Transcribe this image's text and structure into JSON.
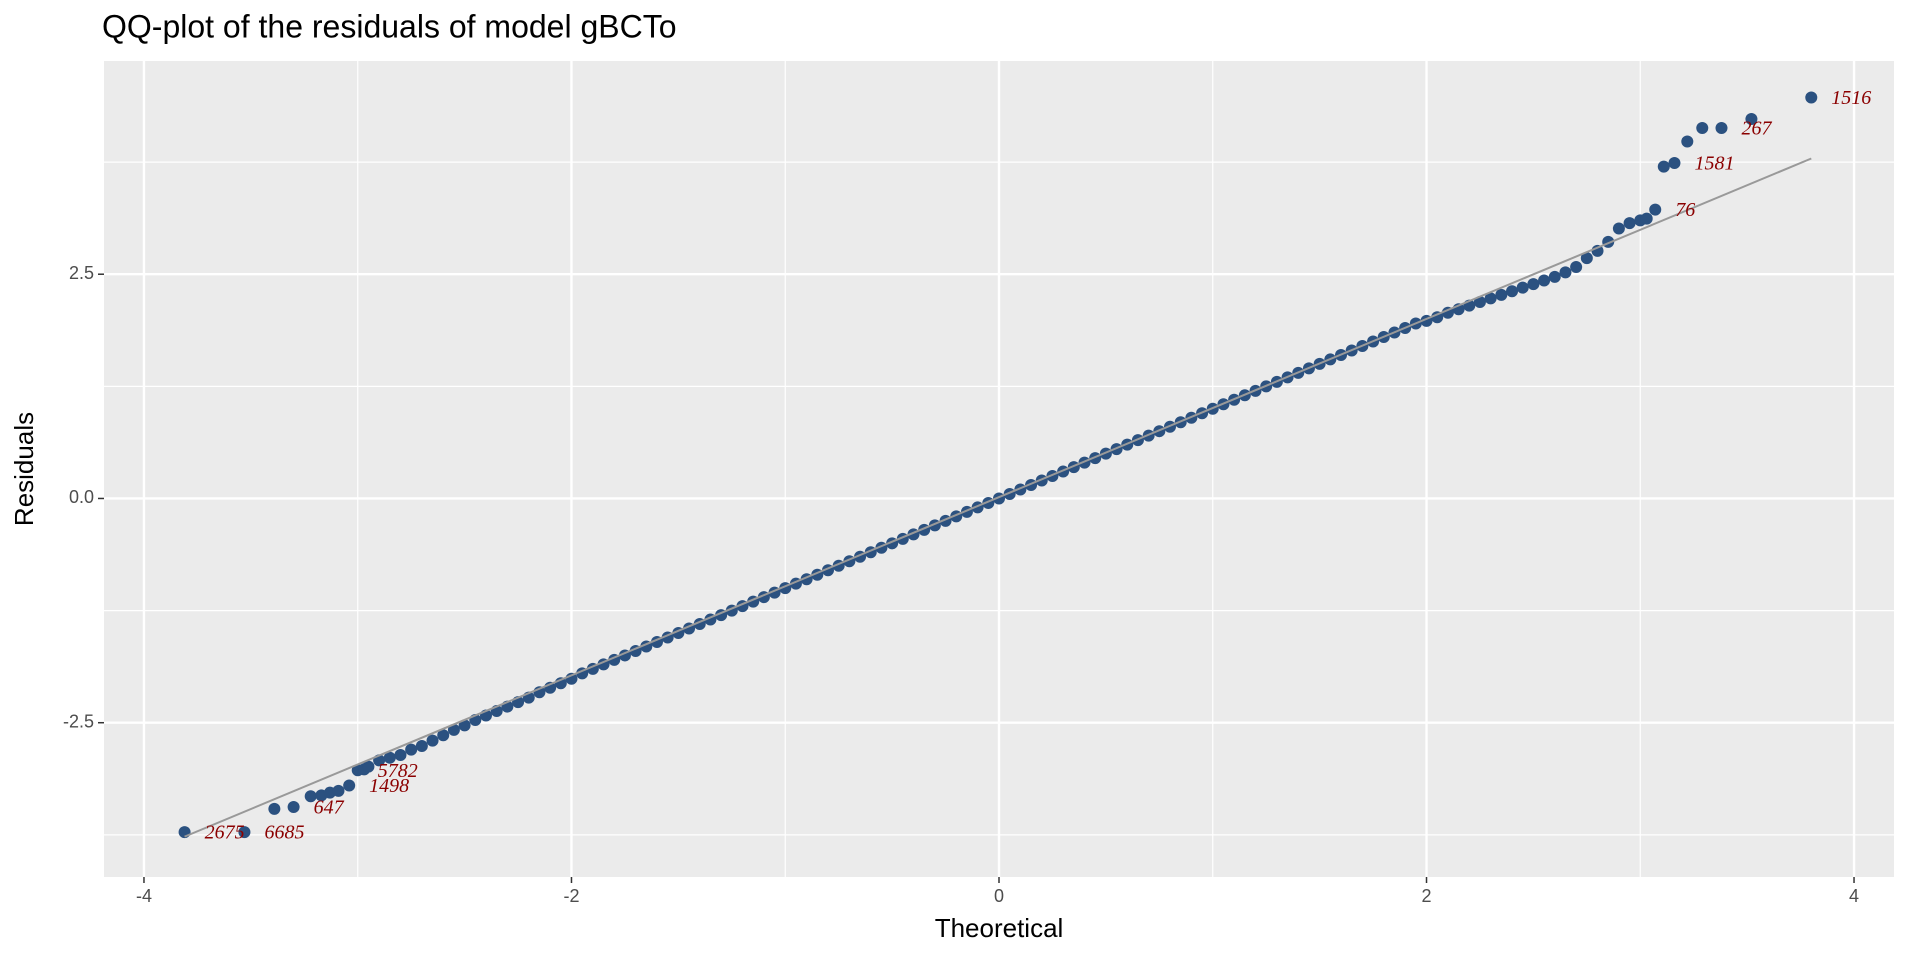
{
  "chart_data": {
    "type": "scatter",
    "title": "QQ-plot of the residuals of model gBCTo",
    "xlabel": "Theoretical",
    "ylabel": "Residuals",
    "color": "#2b5180",
    "x": [
      -3.81,
      -3.53,
      -3.39,
      -3.3,
      -3.22,
      -3.17,
      -3.13,
      -3.09,
      -3.04,
      -3.0,
      -2.97,
      -2.95,
      -2.9,
      -2.85,
      -2.8,
      -2.75,
      -2.7,
      -2.65,
      -2.6,
      -2.55,
      -2.5,
      -2.45,
      -2.4,
      -2.35,
      -2.3,
      -2.25,
      -2.2,
      -2.15,
      -2.1,
      -2.05,
      -2.0,
      -1.95,
      -1.9,
      -1.85,
      -1.8,
      -1.75,
      -1.7,
      -1.65,
      -1.6,
      -1.55,
      -1.5,
      -1.45,
      -1.4,
      -1.35,
      -1.3,
      -1.25,
      -1.2,
      -1.15,
      -1.1,
      -1.05,
      -1.0,
      -0.95,
      -0.9,
      -0.85,
      -0.8,
      -0.75,
      -0.7,
      -0.65,
      -0.6,
      -0.55,
      -0.5,
      -0.45,
      -0.4,
      -0.35,
      -0.3,
      -0.25,
      -0.2,
      -0.15,
      -0.1,
      -0.05,
      0,
      0.05,
      0.1,
      0.15,
      0.2,
      0.25,
      0.3,
      0.35,
      0.4,
      0.45,
      0.5,
      0.55,
      0.6,
      0.65,
      0.7,
      0.75,
      0.8,
      0.85,
      0.9,
      0.95,
      1.0,
      1.05,
      1.1,
      1.15,
      1.2,
      1.25,
      1.3,
      1.35,
      1.4,
      1.45,
      1.5,
      1.55,
      1.6,
      1.65,
      1.7,
      1.75,
      1.8,
      1.85,
      1.9,
      1.95,
      2.0,
      2.05,
      2.1,
      2.15,
      2.2,
      2.25,
      2.3,
      2.35,
      2.4,
      2.45,
      2.5,
      2.55,
      2.6,
      2.65,
      2.7,
      2.75,
      2.8,
      2.85,
      2.9,
      2.95,
      3.0,
      3.03,
      3.07,
      3.11,
      3.16,
      3.22,
      3.29,
      3.38,
      3.52,
      3.8
    ],
    "values": [
      -3.72,
      -3.72,
      -3.46,
      -3.44,
      -3.32,
      -3.31,
      -3.28,
      -3.26,
      -3.2,
      -3.03,
      -3.02,
      -2.99,
      -2.92,
      -2.89,
      -2.86,
      -2.8,
      -2.76,
      -2.7,
      -2.64,
      -2.58,
      -2.53,
      -2.47,
      -2.42,
      -2.37,
      -2.32,
      -2.27,
      -2.22,
      -2.16,
      -2.11,
      -2.06,
      -2.01,
      -1.95,
      -1.9,
      -1.85,
      -1.8,
      -1.75,
      -1.7,
      -1.65,
      -1.6,
      -1.55,
      -1.5,
      -1.45,
      -1.4,
      -1.35,
      -1.3,
      -1.25,
      -1.2,
      -1.15,
      -1.1,
      -1.05,
      -1.0,
      -0.95,
      -0.9,
      -0.85,
      -0.8,
      -0.75,
      -0.7,
      -0.65,
      -0.6,
      -0.55,
      -0.5,
      -0.45,
      -0.4,
      -0.35,
      -0.3,
      -0.25,
      -0.2,
      -0.15,
      -0.1,
      -0.05,
      0,
      0.05,
      0.1,
      0.15,
      0.2,
      0.25,
      0.3,
      0.35,
      0.4,
      0.45,
      0.5,
      0.55,
      0.6,
      0.65,
      0.7,
      0.75,
      0.8,
      0.85,
      0.9,
      0.95,
      1.0,
      1.05,
      1.1,
      1.15,
      1.2,
      1.25,
      1.3,
      1.35,
      1.4,
      1.45,
      1.5,
      1.55,
      1.6,
      1.65,
      1.7,
      1.75,
      1.8,
      1.85,
      1.9,
      1.95,
      1.98,
      2.02,
      2.07,
      2.11,
      2.15,
      2.19,
      2.23,
      2.27,
      2.31,
      2.35,
      2.39,
      2.43,
      2.47,
      2.52,
      2.58,
      2.68,
      2.76,
      2.86,
      3.01,
      3.07,
      3.1,
      3.12,
      3.22,
      3.7,
      3.74,
      3.98,
      4.13,
      4.13,
      4.23,
      4.47
    ],
    "reference_line": {
      "x": [
        -3.81,
        3.8
      ],
      "y": [
        -3.77,
        3.79
      ],
      "color": "#999999"
    },
    "annotations": [
      {
        "text": "2675",
        "x": -3.81,
        "y": -3.72
      },
      {
        "text": "6685",
        "x": -3.53,
        "y": -3.72
      },
      {
        "text": "647",
        "x": -3.3,
        "y": -3.44
      },
      {
        "text": "1498",
        "x": -3.04,
        "y": -3.2
      },
      {
        "text": "5782",
        "x": -3.0,
        "y": -3.03
      },
      {
        "text": "76",
        "x": 3.07,
        "y": 3.22
      },
      {
        "text": "1581",
        "x": 3.16,
        "y": 3.74
      },
      {
        "text": "267",
        "x": 3.38,
        "y": 4.13
      },
      {
        "text": "1516",
        "x": 3.8,
        "y": 4.47
      }
    ],
    "annotation_color": "#8b0000",
    "xlim": [
      -4.187,
      4.187
    ],
    "ylim": [
      -4.22,
      4.877
    ],
    "xticks": [
      -4,
      -2,
      0,
      2,
      4
    ],
    "yticks": [
      -2.5,
      {
        "value": 0,
        "label": "0.0"
      },
      2.5
    ],
    "minor_xticks": [
      -3,
      -1,
      1,
      3
    ],
    "minor_yticks": [
      -3.75,
      -1.25,
      1.25,
      3.75
    ],
    "grid": true
  }
}
